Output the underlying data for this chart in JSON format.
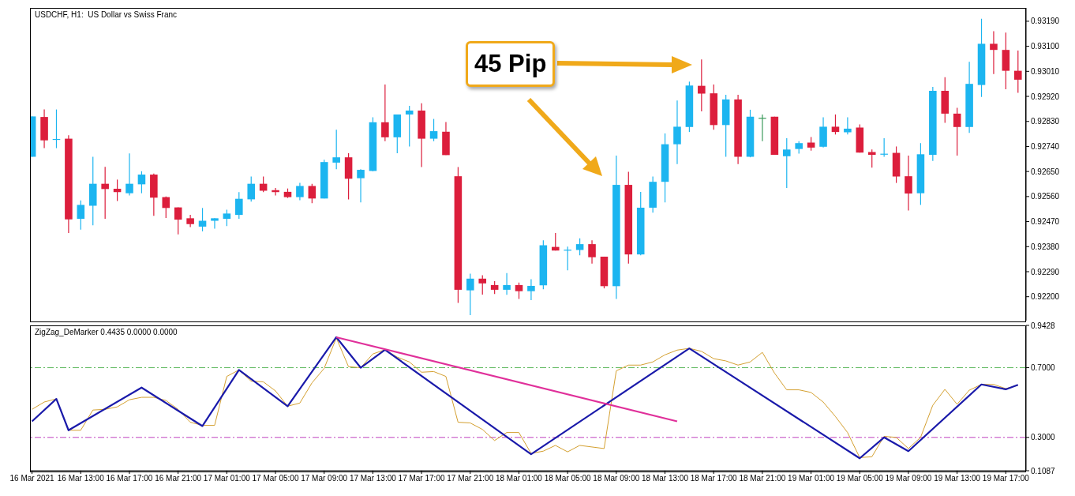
{
  "chart_data": [
    {
      "type": "candlestick",
      "title": "USDCHF, H1:  US Dollar vs Swiss Franc",
      "annotations": [
        "45 Pip"
      ],
      "x": [
        "2021-03-16T09:00",
        "2021-03-16T10:00",
        "2021-03-16T11:00",
        "2021-03-16T12:00",
        "2021-03-16T13:00",
        "2021-03-16T14:00",
        "2021-03-16T15:00",
        "2021-03-16T16:00",
        "2021-03-16T17:00",
        "2021-03-16T18:00",
        "2021-03-16T19:00",
        "2021-03-16T20:00",
        "2021-03-16T21:00",
        "2021-03-16T22:00",
        "2021-03-16T23:00",
        "2021-03-17T00:00",
        "2021-03-17T01:00",
        "2021-03-17T02:00",
        "2021-03-17T03:00",
        "2021-03-17T04:00",
        "2021-03-17T05:00",
        "2021-03-17T06:00",
        "2021-03-17T07:00",
        "2021-03-17T08:00",
        "2021-03-17T09:00",
        "2021-03-17T10:00",
        "2021-03-17T11:00",
        "2021-03-17T12:00",
        "2021-03-17T13:00",
        "2021-03-17T14:00",
        "2021-03-17T15:00",
        "2021-03-17T16:00",
        "2021-03-17T17:00",
        "2021-03-17T18:00",
        "2021-03-17T19:00",
        "2021-03-17T20:00",
        "2021-03-17T21:00",
        "2021-03-17T22:00",
        "2021-03-17T23:00",
        "2021-03-18T00:00",
        "2021-03-18T01:00",
        "2021-03-18T02:00",
        "2021-03-18T03:00",
        "2021-03-18T04:00",
        "2021-03-18T05:00",
        "2021-03-18T06:00",
        "2021-03-18T07:00",
        "2021-03-18T08:00",
        "2021-03-18T09:00",
        "2021-03-18T10:00",
        "2021-03-18T11:00",
        "2021-03-18T12:00",
        "2021-03-18T13:00",
        "2021-03-18T14:00",
        "2021-03-18T15:00",
        "2021-03-18T16:00",
        "2021-03-18T17:00",
        "2021-03-18T18:00",
        "2021-03-18T19:00",
        "2021-03-18T20:00",
        "2021-03-18T21:00",
        "2021-03-18T22:00",
        "2021-03-18T23:00",
        "2021-03-19T00:00",
        "2021-03-19T01:00",
        "2021-03-19T02:00",
        "2021-03-19T03:00",
        "2021-03-19T04:00",
        "2021-03-19T05:00",
        "2021-03-19T06:00",
        "2021-03-19T07:00",
        "2021-03-19T08:00",
        "2021-03-19T09:00",
        "2021-03-19T10:00",
        "2021-03-19T11:00",
        "2021-03-19T12:00",
        "2021-03-19T13:00",
        "2021-03-19T14:00",
        "2021-03-19T15:00",
        "2021-03-19T16:00",
        "2021-03-19T17:00",
        "2021-03-19T18:00"
      ],
      "ohlc": [
        [
          0.92703,
          0.92848,
          0.92703,
          0.92848
        ],
        [
          0.92846,
          0.92873,
          0.92734,
          0.92762
        ],
        [
          0.92766,
          0.92873,
          0.92734,
          0.92767
        ],
        [
          0.92768,
          0.9278,
          0.92429,
          0.92478
        ],
        [
          0.9248,
          0.92546,
          0.92441,
          0.9253
        ],
        [
          0.92527,
          0.92703,
          0.92457,
          0.92606
        ],
        [
          0.92606,
          0.92667,
          0.9248,
          0.92587
        ],
        [
          0.92588,
          0.92621,
          0.92544,
          0.92576
        ],
        [
          0.92572,
          0.92715,
          0.92564,
          0.92606
        ],
        [
          0.92604,
          0.92651,
          0.92572,
          0.92639
        ],
        [
          0.92639,
          0.92643,
          0.92491,
          0.92556
        ],
        [
          0.92558,
          0.9256,
          0.92483,
          0.92519
        ],
        [
          0.92521,
          0.92521,
          0.92424,
          0.92477
        ],
        [
          0.92482,
          0.92494,
          0.9245,
          0.92461
        ],
        [
          0.92452,
          0.92519,
          0.92435,
          0.92473
        ],
        [
          0.92473,
          0.92482,
          0.92445,
          0.92482
        ],
        [
          0.9248,
          0.92513,
          0.92454,
          0.92499
        ],
        [
          0.92494,
          0.92576,
          0.9248,
          0.92552
        ],
        [
          0.9255,
          0.92632,
          0.92542,
          0.92606
        ],
        [
          0.92606,
          0.92632,
          0.92576,
          0.92581
        ],
        [
          0.92583,
          0.92591,
          0.92564,
          0.92576
        ],
        [
          0.92577,
          0.92589,
          0.92555,
          0.92558
        ],
        [
          0.92558,
          0.92609,
          0.92547,
          0.92598
        ],
        [
          0.92598,
          0.92606,
          0.92536,
          0.92553
        ],
        [
          0.92553,
          0.92692,
          0.92553,
          0.92684
        ],
        [
          0.92682,
          0.928,
          0.92658,
          0.92701
        ],
        [
          0.92701,
          0.92716,
          0.9255,
          0.92624
        ],
        [
          0.92626,
          0.92658,
          0.92539,
          0.92656
        ],
        [
          0.92652,
          0.92845,
          0.92651,
          0.92827
        ],
        [
          0.92827,
          0.92963,
          0.92759,
          0.92773
        ],
        [
          0.92773,
          0.92855,
          0.92716,
          0.92855
        ],
        [
          0.92855,
          0.92886,
          0.9274,
          0.92869
        ],
        [
          0.92869,
          0.92895,
          0.92666,
          0.92768
        ],
        [
          0.92768,
          0.92839,
          0.92759,
          0.92795
        ],
        [
          0.92793,
          0.92828,
          0.92709,
          0.92709
        ],
        [
          0.92633,
          0.92666,
          0.92178,
          0.92225
        ],
        [
          0.92223,
          0.92283,
          0.92134,
          0.92265
        ],
        [
          0.92265,
          0.92277,
          0.92208,
          0.92248
        ],
        [
          0.92242,
          0.92256,
          0.9221,
          0.92225
        ],
        [
          0.92225,
          0.92285,
          0.92207,
          0.92242
        ],
        [
          0.92242,
          0.92251,
          0.92192,
          0.9222
        ],
        [
          0.9222,
          0.92263,
          0.92188,
          0.92239
        ],
        [
          0.92241,
          0.92403,
          0.92227,
          0.92385
        ],
        [
          0.92379,
          0.92429,
          0.92366,
          0.92366
        ],
        [
          0.92368,
          0.9238,
          0.92295,
          0.92369
        ],
        [
          0.92368,
          0.9241,
          0.92349,
          0.92389
        ],
        [
          0.92389,
          0.92403,
          0.92319,
          0.92342
        ],
        [
          0.92344,
          0.92344,
          0.9223,
          0.92238
        ],
        [
          0.92238,
          0.92707,
          0.92192,
          0.92602
        ],
        [
          0.92602,
          0.92649,
          0.92319,
          0.92352
        ],
        [
          0.92352,
          0.92577,
          0.92349,
          0.9252
        ],
        [
          0.9252,
          0.92632,
          0.92502,
          0.92613
        ],
        [
          0.92613,
          0.92787,
          0.92539,
          0.92748
        ],
        [
          0.92748,
          0.92905,
          0.92677,
          0.92811
        ],
        [
          0.9281,
          0.92973,
          0.92792,
          0.92959
        ],
        [
          0.92958,
          0.93053,
          0.92866,
          0.9293
        ],
        [
          0.92931,
          0.92963,
          0.928,
          0.92817
        ],
        [
          0.92817,
          0.92926,
          0.92703,
          0.92909
        ],
        [
          0.92909,
          0.92926,
          0.92677,
          0.92703
        ],
        [
          0.92703,
          0.92872,
          0.92701,
          0.92847
        ],
        [
          0.92843,
          0.92855,
          0.92759,
          0.92843
        ],
        [
          0.92847,
          0.92847,
          0.9271,
          0.9271
        ],
        [
          0.92705,
          0.9277,
          0.92591,
          0.92729
        ],
        [
          0.92731,
          0.92759,
          0.92714,
          0.92752
        ],
        [
          0.92754,
          0.92774,
          0.92725,
          0.92736
        ],
        [
          0.92739,
          0.92845,
          0.92736,
          0.92811
        ],
        [
          0.92811,
          0.92855,
          0.92783,
          0.92792
        ],
        [
          0.92791,
          0.92845,
          0.92783,
          0.92804
        ],
        [
          0.92808,
          0.92819,
          0.92718,
          0.92718
        ],
        [
          0.9272,
          0.92729,
          0.92664,
          0.9271
        ],
        [
          0.92713,
          0.9277,
          0.92703,
          0.92714
        ],
        [
          0.92717,
          0.9274,
          0.92609,
          0.92632
        ],
        [
          0.92633,
          0.92707,
          0.9251,
          0.92571
        ],
        [
          0.92572,
          0.92752,
          0.9253,
          0.92712
        ],
        [
          0.9271,
          0.92954,
          0.92688,
          0.9294
        ],
        [
          0.9294,
          0.92989,
          0.92825,
          0.92858
        ],
        [
          0.92858,
          0.92879,
          0.92707,
          0.9281
        ],
        [
          0.9281,
          0.93044,
          0.92789,
          0.92965
        ],
        [
          0.92961,
          0.93199,
          0.92918,
          0.93109
        ],
        [
          0.93109,
          0.93154,
          0.93,
          0.93087
        ],
        [
          0.93087,
          0.93149,
          0.92946,
          0.93012
        ],
        [
          0.93012,
          0.93085,
          0.92933,
          0.9298
        ]
      ],
      "colors": [
        "#1cb5f0",
        "#dc1e3c",
        "#1cb5f0",
        "#dc1e3c",
        "#1cb5f0",
        "#1cb5f0",
        "#dc1e3c",
        "#dc1e3c",
        "#1cb5f0",
        "#1cb5f0",
        "#dc1e3c",
        "#dc1e3c",
        "#dc1e3c",
        "#dc1e3c",
        "#1cb5f0",
        "#1cb5f0",
        "#1cb5f0",
        "#1cb5f0",
        "#1cb5f0",
        "#dc1e3c",
        "#dc1e3c",
        "#dc1e3c",
        "#1cb5f0",
        "#dc1e3c",
        "#1cb5f0",
        "#1cb5f0",
        "#dc1e3c",
        "#1cb5f0",
        "#1cb5f0",
        "#dc1e3c",
        "#1cb5f0",
        "#1cb5f0",
        "#dc1e3c",
        "#1cb5f0",
        "#dc1e3c",
        "#dc1e3c",
        "#1cb5f0",
        "#dc1e3c",
        "#dc1e3c",
        "#1cb5f0",
        "#dc1e3c",
        "#1cb5f0",
        "#1cb5f0",
        "#dc1e3c",
        "#1cb5f0",
        "#1cb5f0",
        "#dc1e3c",
        "#dc1e3c",
        "#1cb5f0",
        "#dc1e3c",
        "#1cb5f0",
        "#1cb5f0",
        "#1cb5f0",
        "#1cb5f0",
        "#1cb5f0",
        "#dc1e3c",
        "#dc1e3c",
        "#1cb5f0",
        "#dc1e3c",
        "#1cb5f0",
        "#3a9a5a",
        "#dc1e3c",
        "#1cb5f0",
        "#1cb5f0",
        "#dc1e3c",
        "#1cb5f0",
        "#dc1e3c",
        "#1cb5f0",
        "#dc1e3c",
        "#dc1e3c",
        "#1cb5f0",
        "#dc1e3c",
        "#dc1e3c",
        "#1cb5f0",
        "#1cb5f0",
        "#dc1e3c",
        "#dc1e3c",
        "#1cb5f0",
        "#1cb5f0",
        "#dc1e3c",
        "#dc1e3c",
        "#dc1e3c"
      ],
      "xlim": [
        "2021-03-16T08:50",
        "2021-03-19T18:40"
      ],
      "tick_labels": "y",
      "ylim": [
        0.92114,
        0.93238
      ],
      "yticks": [
        {
          "value": 0.9319,
          "label": "0.93190"
        },
        {
          "value": 0.931,
          "label": "0.93100"
        },
        {
          "value": 0.9301,
          "label": "0.93010"
        },
        {
          "value": 0.9292,
          "label": "0.92920"
        },
        {
          "value": 0.9283,
          "label": "0.92830"
        },
        {
          "value": 0.9274,
          "label": "0.92740"
        },
        {
          "value": 0.9265,
          "label": "0.92650"
        },
        {
          "value": 0.9256,
          "label": "0.92560"
        },
        {
          "value": 0.9247,
          "label": "0.92470"
        },
        {
          "value": 0.9238,
          "label": "0.92380"
        },
        {
          "value": 0.9229,
          "label": "0.92290"
        },
        {
          "value": 0.922,
          "label": "0.92200"
        }
      ]
    },
    {
      "type": "line",
      "title": "ZigZag_DeMarker 0.4435 0.0000 0.0000",
      "x": [
        "2021-03-16T09:00",
        "2021-03-16T10:00",
        "2021-03-16T11:00",
        "2021-03-16T12:00",
        "2021-03-16T13:00",
        "2021-03-16T14:00",
        "2021-03-16T15:00",
        "2021-03-16T16:00",
        "2021-03-16T17:00",
        "2021-03-16T18:00",
        "2021-03-16T19:00",
        "2021-03-16T20:00",
        "2021-03-16T21:00",
        "2021-03-16T22:00",
        "2021-03-16T23:00",
        "2021-03-17T00:00",
        "2021-03-17T01:00",
        "2021-03-17T02:00",
        "2021-03-17T03:00",
        "2021-03-17T04:00",
        "2021-03-17T05:00",
        "2021-03-17T06:00",
        "2021-03-17T07:00",
        "2021-03-17T08:00",
        "2021-03-17T09:00",
        "2021-03-17T10:00",
        "2021-03-17T11:00",
        "2021-03-17T12:00",
        "2021-03-17T13:00",
        "2021-03-17T14:00",
        "2021-03-17T15:00",
        "2021-03-17T16:00",
        "2021-03-17T17:00",
        "2021-03-17T18:00",
        "2021-03-17T19:00",
        "2021-03-17T20:00",
        "2021-03-17T21:00",
        "2021-03-17T22:00",
        "2021-03-17T23:00",
        "2021-03-18T00:00",
        "2021-03-18T01:00",
        "2021-03-18T02:00",
        "2021-03-18T03:00",
        "2021-03-18T04:00",
        "2021-03-18T05:00",
        "2021-03-18T06:00",
        "2021-03-18T07:00",
        "2021-03-18T08:00",
        "2021-03-18T09:00",
        "2021-03-18T10:00",
        "2021-03-18T11:00",
        "2021-03-18T12:00",
        "2021-03-18T13:00",
        "2021-03-18T14:00",
        "2021-03-18T15:00",
        "2021-03-18T16:00",
        "2021-03-18T17:00",
        "2021-03-18T18:00",
        "2021-03-18T19:00",
        "2021-03-18T20:00",
        "2021-03-18T21:00",
        "2021-03-18T22:00",
        "2021-03-18T23:00",
        "2021-03-19T00:00",
        "2021-03-19T01:00",
        "2021-03-19T02:00",
        "2021-03-19T03:00",
        "2021-03-19T04:00",
        "2021-03-19T05:00",
        "2021-03-19T06:00",
        "2021-03-19T07:00",
        "2021-03-19T08:00",
        "2021-03-19T09:00",
        "2021-03-19T10:00",
        "2021-03-19T11:00",
        "2021-03-19T12:00",
        "2021-03-19T13:00",
        "2021-03-19T14:00",
        "2021-03-19T15:00",
        "2021-03-19T16:00",
        "2021-03-19T17:00",
        "2021-03-19T18:00"
      ],
      "series": [
        {
          "color": "#d4a030",
          "values": [
            0.461,
            0.503,
            0.521,
            0.341,
            0.341,
            0.457,
            0.461,
            0.475,
            0.516,
            0.53,
            0.53,
            0.512,
            0.461,
            0.387,
            0.369,
            0.369,
            0.65,
            0.687,
            0.623,
            0.619,
            0.567,
            0.479,
            0.497,
            0.613,
            0.696,
            0.871,
            0.706,
            0.7,
            0.779,
            0.803,
            0.761,
            0.733,
            0.674,
            0.678,
            0.65,
            0.387,
            0.383,
            0.346,
            0.282,
            0.328,
            0.328,
            0.208,
            0.221,
            0.254,
            0.217,
            0.254,
            0.245,
            0.236,
            0.682,
            0.715,
            0.715,
            0.733,
            0.774,
            0.801,
            0.811,
            0.794,
            0.752,
            0.739,
            0.715,
            0.733,
            0.788,
            0.669,
            0.573,
            0.573,
            0.558,
            0.503,
            0.42,
            0.328,
            0.184,
            0.189,
            0.306,
            0.3,
            0.236,
            0.3,
            0.484,
            0.576,
            0.49,
            0.571,
            0.604,
            0.604,
            0.58,
            0.599
          ]
        },
        {
          "type": "line",
          "color": "#1a1aaa",
          "x": [
            "2021-03-16T09:00",
            "2021-03-16T11:00",
            "2021-03-16T12:00",
            "2021-03-16T18:00",
            "2021-03-16T23:00",
            "2021-03-17T02:00",
            "2021-03-17T06:00",
            "2021-03-17T10:00",
            "2021-03-17T12:00",
            "2021-03-17T14:00",
            "2021-03-18T02:00",
            "2021-03-18T15:00",
            "2021-03-19T05:00",
            "2021-03-19T07:00",
            "2021-03-19T09:00",
            "2021-03-19T15:00",
            "2021-03-19T17:00",
            "2021-03-19T18:00"
          ],
          "values": [
            0.392,
            0.521,
            0.341,
            0.586,
            0.365,
            0.687,
            0.479,
            0.875,
            0.7,
            0.803,
            0.203,
            0.811,
            0.18,
            0.3,
            0.221,
            0.604,
            0.576,
            0.602
          ]
        },
        {
          "type": "line",
          "color": "#e0309a",
          "x": [
            "2021-03-17T10:00",
            "2021-03-18T14:00"
          ],
          "values": [
            0.875,
            0.392
          ]
        }
      ],
      "ref_lines": [
        {
          "axis": "y",
          "value": 0.7,
          "color": "#5cb85c",
          "line_style": "dashed"
        },
        {
          "axis": "y",
          "value": 0.3,
          "color": "#c040c0",
          "line_style": "dashed"
        }
      ],
      "xlim": [
        "2021-03-16T08:50",
        "2021-03-19T18:40"
      ],
      "xticks": [
        {
          "value": "2021-03-16T09:00",
          "label": "16 Mar 2021"
        },
        {
          "value": "2021-03-16T13:00",
          "label": "16 Mar 13:00"
        },
        {
          "value": "2021-03-16T17:00",
          "label": "16 Mar 17:00"
        },
        {
          "value": "2021-03-16T21:00",
          "label": "16 Mar 21:00"
        },
        {
          "value": "2021-03-17T01:00",
          "label": "17 Mar 01:00"
        },
        {
          "value": "2021-03-17T05:00",
          "label": "17 Mar 05:00"
        },
        {
          "value": "2021-03-17T09:00",
          "label": "17 Mar 09:00"
        },
        {
          "value": "2021-03-17T13:00",
          "label": "17 Mar 13:00"
        },
        {
          "value": "2021-03-17T17:00",
          "label": "17 Mar 17:00"
        },
        {
          "value": "2021-03-17T21:00",
          "label": "17 Mar 21:00"
        },
        {
          "value": "2021-03-18T01:00",
          "label": "18 Mar 01:00"
        },
        {
          "value": "2021-03-18T05:00",
          "label": "18 Mar 05:00"
        },
        {
          "value": "2021-03-18T09:00",
          "label": "18 Mar 09:00"
        },
        {
          "value": "2021-03-18T13:00",
          "label": "18 Mar 13:00"
        },
        {
          "value": "2021-03-18T17:00",
          "label": "18 Mar 17:00"
        },
        {
          "value": "2021-03-18T21:00",
          "label": "18 Mar 21:00"
        },
        {
          "value": "2021-03-19T01:00",
          "label": "19 Mar 01:00"
        },
        {
          "value": "2021-03-19T05:00",
          "label": "19 Mar 05:00"
        },
        {
          "value": "2021-03-19T09:00",
          "label": "19 Mar 09:00"
        },
        {
          "value": "2021-03-19T13:00",
          "label": "19 Mar 13:00"
        },
        {
          "value": "2021-03-19T17:00",
          "label": "19 Mar 17:00"
        }
      ],
      "ylim": [
        0.1087,
        0.9428
      ],
      "yticks": [
        {
          "value": 0.9428,
          "label": "0.9428"
        },
        {
          "value": 0.7,
          "label": "0.7000"
        },
        {
          "value": 0.3,
          "label": "0.3000"
        },
        {
          "value": 0.1087,
          "label": "0.1087"
        }
      ]
    }
  ]
}
